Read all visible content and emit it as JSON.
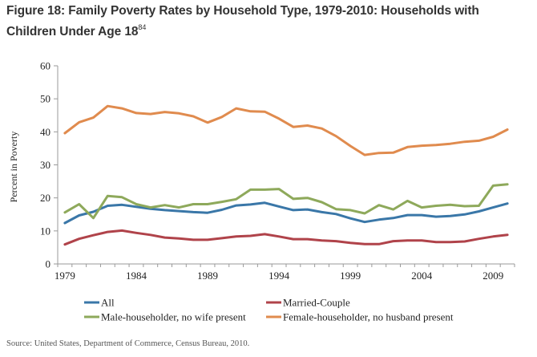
{
  "figure": {
    "title_main": "Figure 18: Family Poverty Rates by Household Type, 1979-2010: Households with Children Under Age 18",
    "title_footnote": "84",
    "source": "Source: United States, Department of Commerce, Census Bureau, 2010."
  },
  "chart_data": {
    "type": "line",
    "title": "Figure 18: Family Poverty Rates by Household Type, 1979-2010: Households with Children Under Age 18",
    "xlabel": "",
    "ylabel": "Percent in Poverty",
    "ylim": [
      0,
      60
    ],
    "yticks": [
      "0",
      "10",
      "20",
      "30",
      "40",
      "50",
      "60"
    ],
    "xtick_labels": [
      "1979",
      "1984",
      "1989",
      "1994",
      "1999",
      "2004",
      "2009"
    ],
    "grid": false,
    "legend_position": "bottom",
    "x": [
      1979,
      1980,
      1981,
      1982,
      1983,
      1984,
      1985,
      1986,
      1987,
      1988,
      1989,
      1990,
      1991,
      1992,
      1993,
      1994,
      1995,
      1996,
      1997,
      1998,
      1999,
      2000,
      2001,
      2002,
      2003,
      2004,
      2005,
      2006,
      2007,
      2008,
      2009,
      2010
    ],
    "series": [
      {
        "name": "All",
        "color": "#3a77a8",
        "values": [
          12.4,
          14.7,
          15.8,
          17.6,
          17.9,
          17.3,
          16.7,
          16.3,
          16.0,
          15.7,
          15.5,
          16.4,
          17.7,
          18.0,
          18.5,
          17.4,
          16.3,
          16.5,
          15.7,
          15.1,
          13.8,
          12.7,
          13.4,
          13.9,
          14.8,
          14.8,
          14.3,
          14.5,
          15.0,
          15.9,
          17.1,
          18.3
        ]
      },
      {
        "name": "Married-Couple",
        "color": "#b0434a",
        "values": [
          5.9,
          7.6,
          8.7,
          9.7,
          10.1,
          9.4,
          8.8,
          8.0,
          7.7,
          7.3,
          7.3,
          7.8,
          8.3,
          8.5,
          9.0,
          8.3,
          7.5,
          7.5,
          7.1,
          6.9,
          6.4,
          6.0,
          6.0,
          6.9,
          7.1,
          7.1,
          6.6,
          6.6,
          6.8,
          7.6,
          8.3,
          8.8
        ]
      },
      {
        "name": "Male-householder, no wife present",
        "color": "#8ea95b",
        "values": [
          15.6,
          18.1,
          13.9,
          20.6,
          20.2,
          18.1,
          17.1,
          17.8,
          17.1,
          18.1,
          18.1,
          18.8,
          19.6,
          22.5,
          22.5,
          22.7,
          19.7,
          20.0,
          18.7,
          16.6,
          16.3,
          15.3,
          17.8,
          16.5,
          19.1,
          17.1,
          17.6,
          17.9,
          17.5,
          17.6,
          23.7,
          24.1
        ]
      },
      {
        "name": "Female-householder, no husband present",
        "color": "#e08b4e",
        "values": [
          39.6,
          42.9,
          44.3,
          47.8,
          47.1,
          45.7,
          45.4,
          46.0,
          45.6,
          44.7,
          42.8,
          44.5,
          47.1,
          46.2,
          46.1,
          44.0,
          41.5,
          41.9,
          41.0,
          38.7,
          35.7,
          33.0,
          33.6,
          33.7,
          35.4,
          35.8,
          36.0,
          36.4,
          37.0,
          37.3,
          38.5,
          40.7
        ]
      }
    ]
  }
}
